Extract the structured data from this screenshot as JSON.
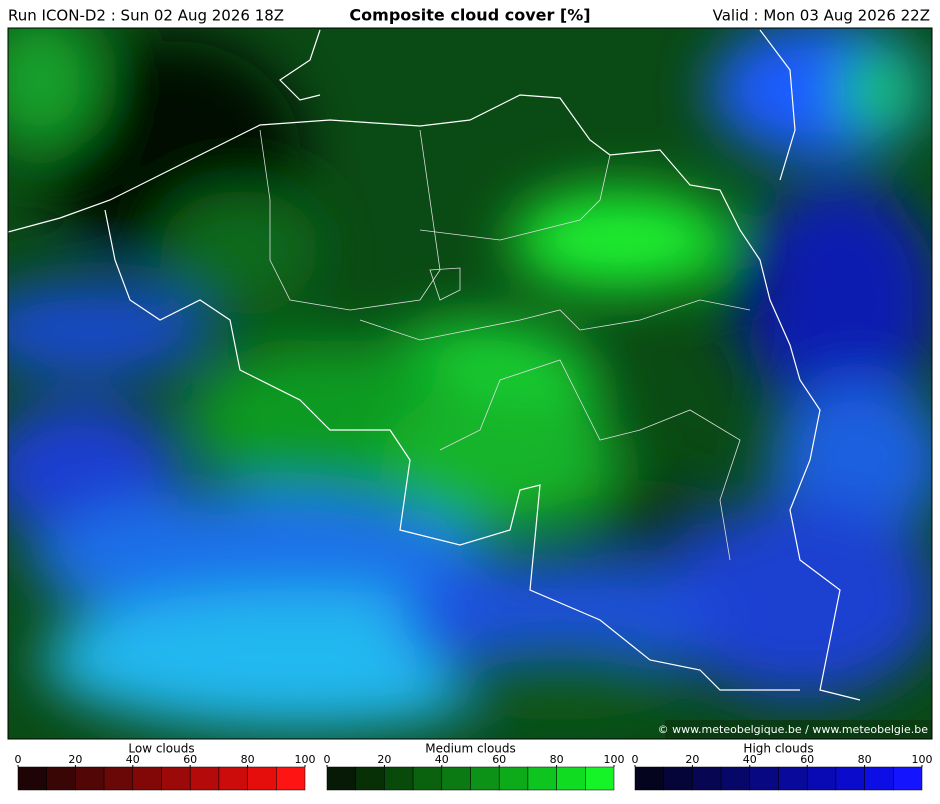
{
  "header": {
    "run": "Run ICON-D2 : Sun 02 Aug 2026 18Z",
    "title": "Composite cloud cover [%]",
    "valid": "Valid : Mon 03 Aug 2026 22Z"
  },
  "map": {
    "credit": "© www.meteobelgique.be / www.meteobelgie.be"
  },
  "legends": [
    {
      "title": "Low clouds",
      "ticks": [
        0,
        20,
        40,
        60,
        80,
        100
      ],
      "colors": [
        "#1e0404",
        "#3a0505",
        "#520606",
        "#6a0707",
        "#820808",
        "#9c0909",
        "#b40a0a",
        "#cc0b0b",
        "#e60d0d",
        "#ff1414"
      ]
    },
    {
      "title": "Medium clouds",
      "ticks": [
        0,
        20,
        40,
        60,
        80,
        100
      ],
      "colors": [
        "#061a06",
        "#073007",
        "#084a0a",
        "#0a620e",
        "#0b7a12",
        "#0c9216",
        "#0daa1a",
        "#0ec41e",
        "#10dc22",
        "#14f426"
      ]
    },
    {
      "title": "High clouds",
      "ticks": [
        0,
        20,
        40,
        60,
        80,
        100
      ],
      "colors": [
        "#04041e",
        "#05053a",
        "#060652",
        "#07076a",
        "#080882",
        "#09099c",
        "#0a0ab4",
        "#0b0bcc",
        "#0d0de6",
        "#1414ff"
      ]
    }
  ]
}
